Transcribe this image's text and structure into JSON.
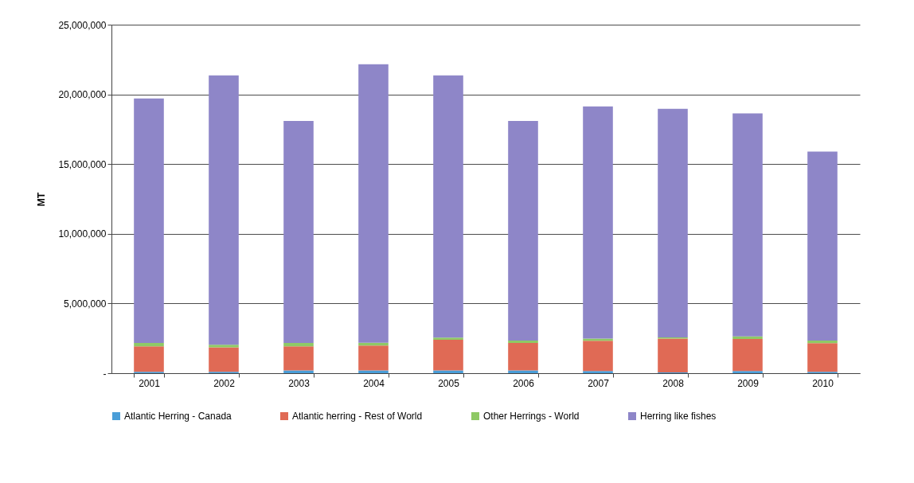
{
  "chart_data": {
    "type": "bar",
    "stacked": true,
    "ylabel": "MT",
    "categories": [
      "2001",
      "2002",
      "2003",
      "2004",
      "2005",
      "2006",
      "2007",
      "2008",
      "2009",
      "2010"
    ],
    "series": [
      {
        "name": "Atlantic Herring - Canada",
        "color": "#4a9ed8",
        "values": [
          100000,
          100000,
          200000,
          200000,
          200000,
          200000,
          150000,
          50000,
          150000,
          100000
        ]
      },
      {
        "name": "Atlantic herring - Rest of World",
        "color": "#e06a55",
        "values": [
          1820000,
          1750000,
          1720000,
          1780000,
          2200000,
          1970000,
          2170000,
          2440000,
          2300000,
          2050000
        ]
      },
      {
        "name": "Other Herrings - World",
        "color": "#8fc965",
        "values": [
          250000,
          190000,
          250000,
          210000,
          150000,
          170000,
          170000,
          80000,
          190000,
          190000
        ]
      },
      {
        "name": "Herring like fishes",
        "color": "#8e86c8",
        "values": [
          17530000,
          19320000,
          15930000,
          19970000,
          18810000,
          15760000,
          16650000,
          16400000,
          15990000,
          13560000
        ]
      }
    ],
    "ylim": [
      0,
      25000000
    ],
    "yticks": [
      {
        "value": 0,
        "label": "-"
      },
      {
        "value": 5000000,
        "label": "5,000,000"
      },
      {
        "value": 10000000,
        "label": "10,000,000"
      },
      {
        "value": 15000000,
        "label": "15,000,000"
      },
      {
        "value": 20000000,
        "label": "20,000,000"
      },
      {
        "value": 25000000,
        "label": "25,000,000"
      }
    ],
    "grid": "y",
    "legend": "bottom"
  }
}
